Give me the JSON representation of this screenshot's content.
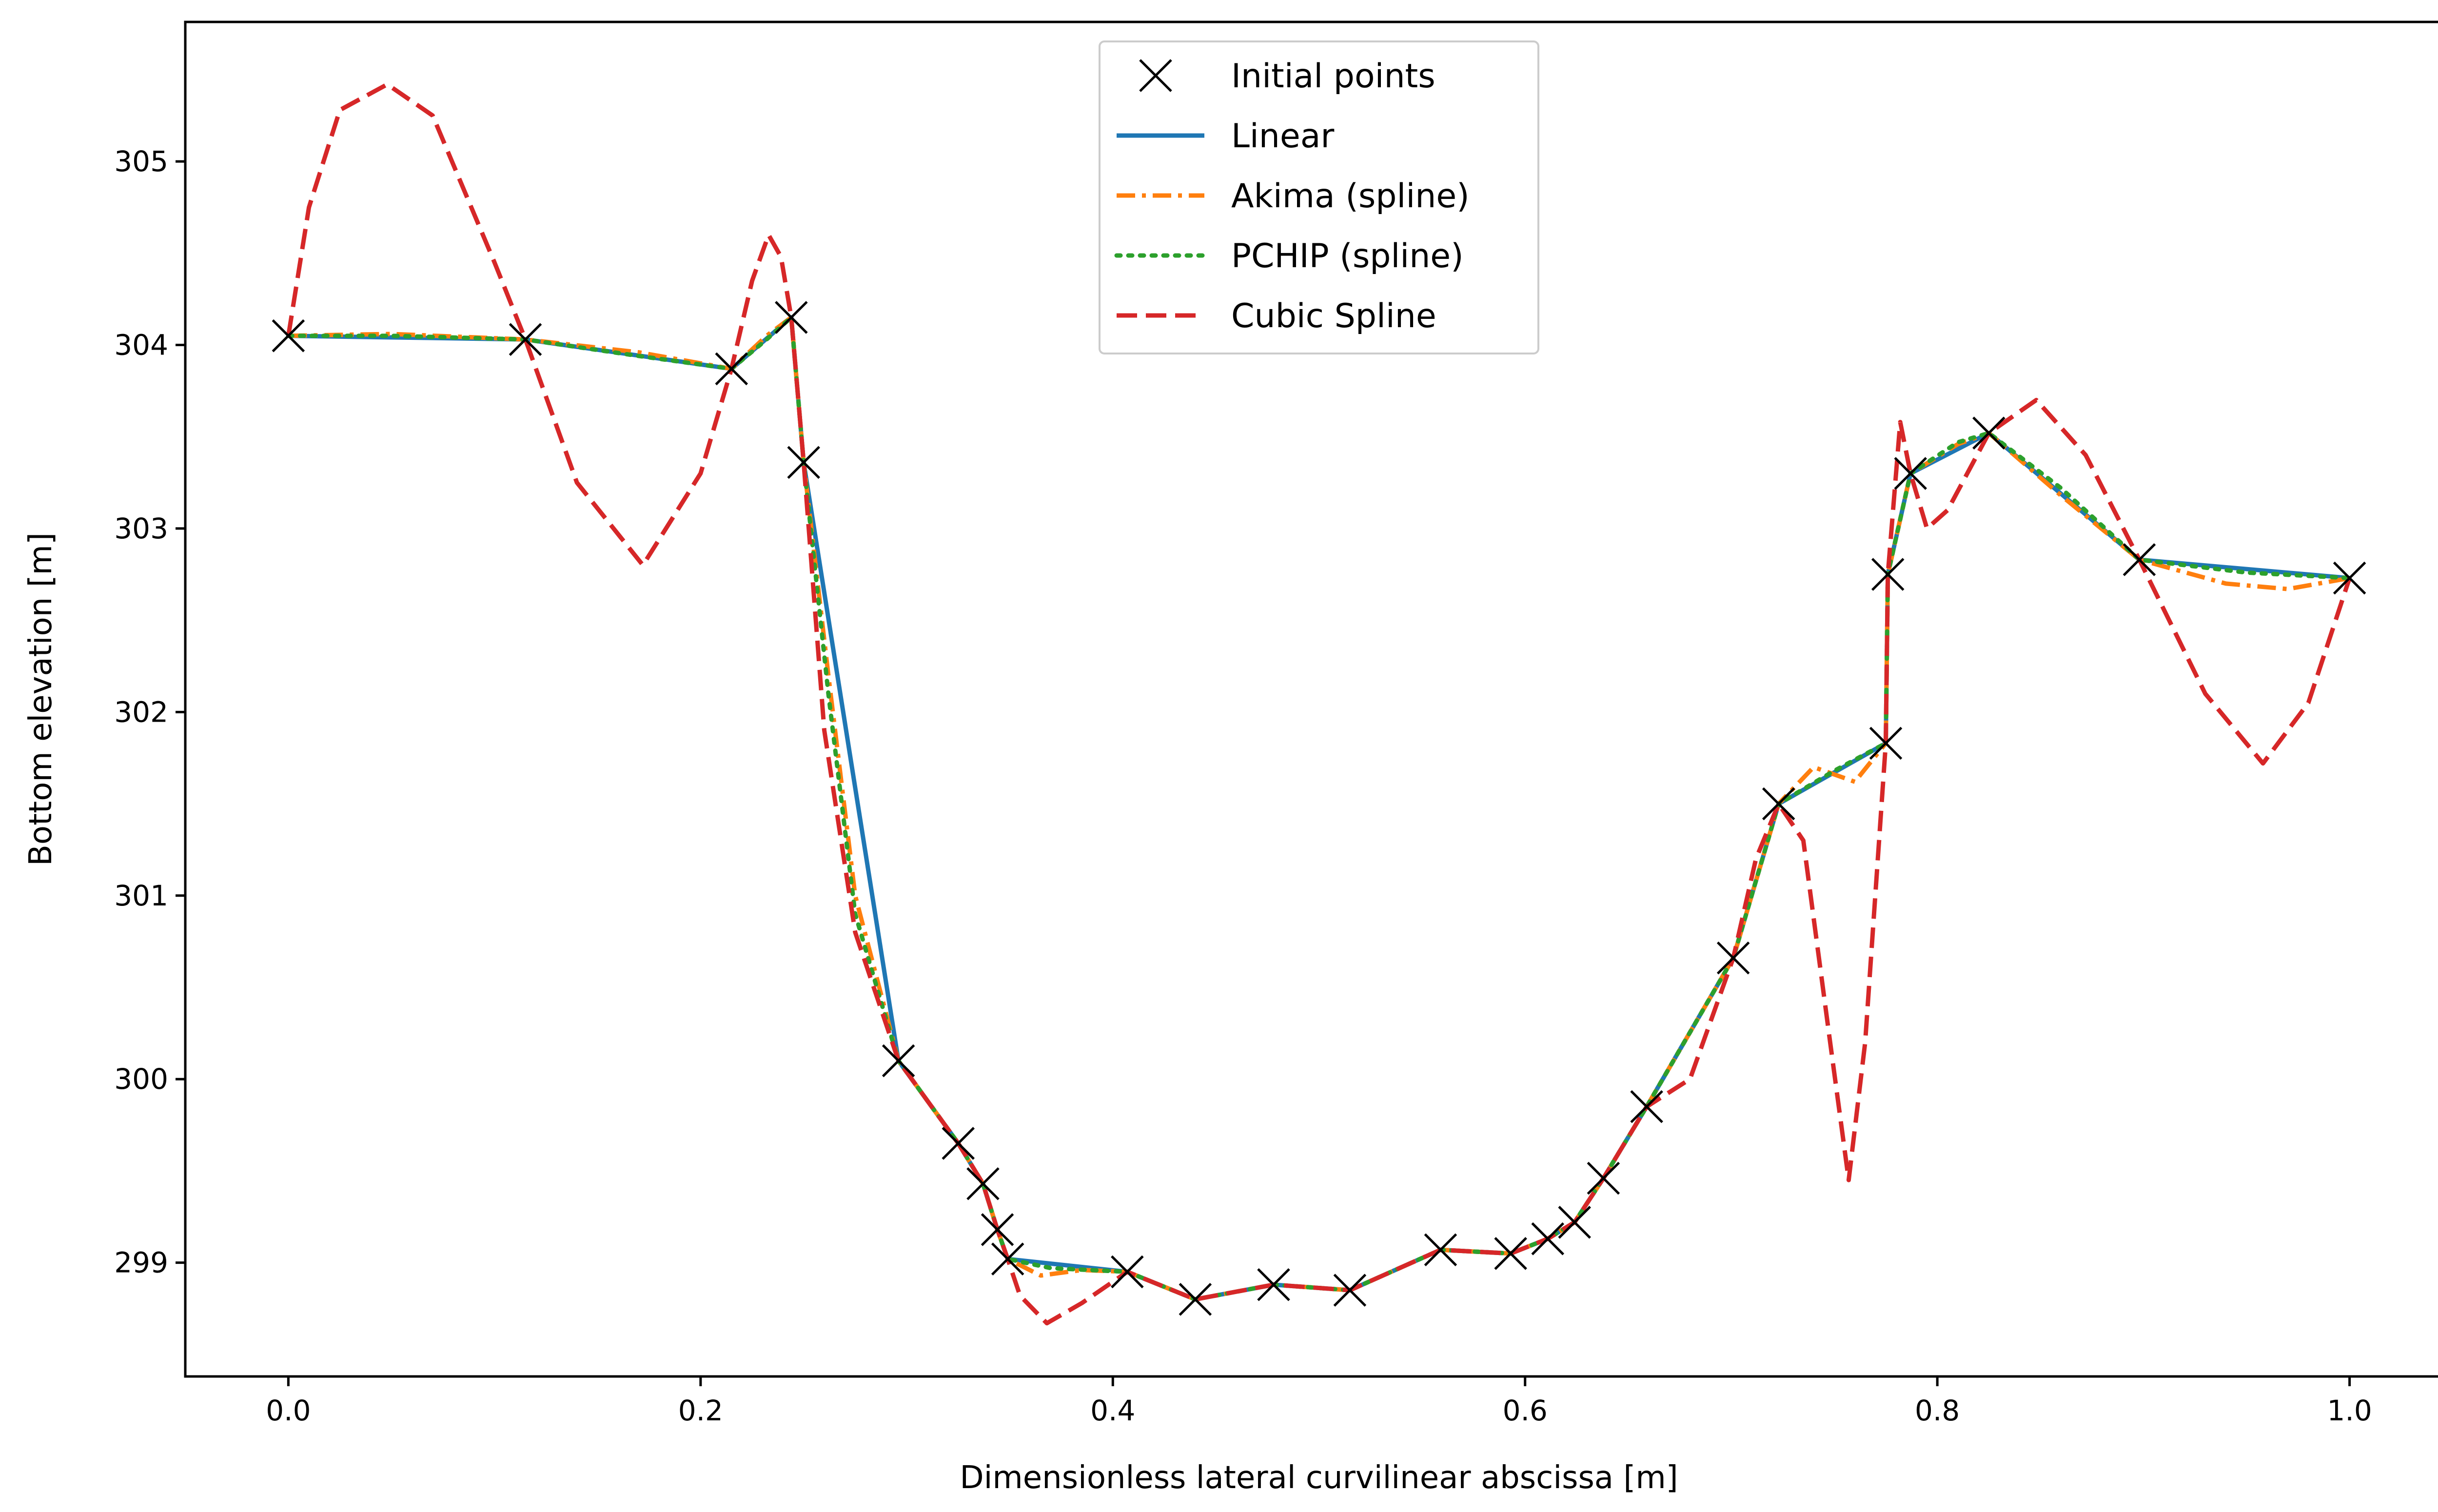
{
  "chart_data": {
    "type": "line",
    "title": "",
    "xlabel": "Dimensionless lateral curvilinear abscissa [m]",
    "ylabel": "Bottom elevation [m]",
    "xlim": [
      -0.05,
      1.05
    ],
    "ylim": [
      298.38,
      305.76
    ],
    "grid": false,
    "legend_position": "top-center",
    "xticks": [
      0.0,
      0.2,
      0.4,
      0.6,
      0.8,
      1.0
    ],
    "xtick_labels": [
      "0.0",
      "0.2",
      "0.4",
      "0.6",
      "0.8",
      "1.0"
    ],
    "yticks": [
      299,
      300,
      301,
      302,
      303,
      304,
      305
    ],
    "ytick_labels": [
      "299",
      "300",
      "301",
      "302",
      "303",
      "304",
      "305"
    ],
    "initial_points": {
      "name": "Initial points",
      "color": "#000000",
      "marker": "x",
      "x": [
        0.0,
        0.115,
        0.215,
        0.244,
        0.25,
        0.296,
        0.325,
        0.337,
        0.344,
        0.349,
        0.407,
        0.44,
        0.478,
        0.515,
        0.559,
        0.593,
        0.611,
        0.624,
        0.638,
        0.659,
        0.701,
        0.723,
        0.775,
        0.776,
        0.787,
        0.825,
        0.898,
        1.0
      ],
      "y": [
        304.05,
        304.03,
        303.87,
        304.15,
        303.36,
        300.1,
        299.65,
        299.43,
        299.18,
        299.02,
        298.95,
        298.8,
        298.88,
        298.85,
        299.07,
        299.05,
        299.13,
        299.22,
        299.46,
        299.85,
        300.66,
        301.5,
        301.83,
        302.75,
        303.3,
        303.52,
        302.83,
        302.73
      ]
    },
    "series": [
      {
        "name": "Linear",
        "color": "#1f77b4",
        "dash": "solid",
        "x": [
          0.0,
          0.115,
          0.215,
          0.244,
          0.25,
          0.296,
          0.325,
          0.337,
          0.344,
          0.349,
          0.407,
          0.44,
          0.478,
          0.515,
          0.559,
          0.593,
          0.611,
          0.624,
          0.638,
          0.659,
          0.701,
          0.723,
          0.775,
          0.776,
          0.787,
          0.825,
          0.898,
          1.0
        ],
        "y": [
          304.05,
          304.03,
          303.87,
          304.15,
          303.36,
          300.1,
          299.65,
          299.43,
          299.18,
          299.02,
          298.95,
          298.8,
          298.88,
          298.85,
          299.07,
          299.05,
          299.13,
          299.22,
          299.46,
          299.85,
          300.66,
          301.5,
          301.83,
          302.75,
          303.3,
          303.52,
          302.83,
          302.73
        ]
      },
      {
        "name": "Akima (spline)",
        "color": "#ff7f0e",
        "dash": "dashdot",
        "x": [
          0.0,
          0.05,
          0.115,
          0.17,
          0.215,
          0.232,
          0.244,
          0.25,
          0.262,
          0.275,
          0.296,
          0.325,
          0.337,
          0.344,
          0.349,
          0.365,
          0.385,
          0.407,
          0.44,
          0.478,
          0.515,
          0.559,
          0.593,
          0.611,
          0.624,
          0.638,
          0.659,
          0.701,
          0.723,
          0.74,
          0.76,
          0.775,
          0.776,
          0.787,
          0.81,
          0.825,
          0.86,
          0.898,
          0.94,
          0.97,
          1.0
        ],
        "y": [
          304.05,
          304.06,
          304.03,
          303.96,
          303.87,
          304.05,
          304.15,
          303.36,
          302.2,
          301.0,
          300.1,
          299.65,
          299.43,
          299.18,
          299.02,
          298.93,
          298.96,
          298.95,
          298.8,
          298.88,
          298.85,
          299.07,
          299.05,
          299.13,
          299.22,
          299.46,
          299.85,
          300.66,
          301.5,
          301.7,
          301.62,
          301.83,
          302.75,
          303.3,
          303.46,
          303.52,
          303.18,
          302.83,
          302.7,
          302.67,
          302.73
        ]
      },
      {
        "name": "PCHIP (spline)",
        "color": "#2ca02c",
        "dash": "dotted",
        "x": [
          0.0,
          0.05,
          0.115,
          0.17,
          0.215,
          0.232,
          0.244,
          0.25,
          0.262,
          0.275,
          0.296,
          0.325,
          0.337,
          0.344,
          0.349,
          0.37,
          0.407,
          0.44,
          0.478,
          0.515,
          0.559,
          0.593,
          0.611,
          0.624,
          0.638,
          0.659,
          0.701,
          0.723,
          0.75,
          0.775,
          0.776,
          0.787,
          0.81,
          0.825,
          0.86,
          0.898,
          0.95,
          1.0
        ],
        "y": [
          304.05,
          304.05,
          304.03,
          303.94,
          303.87,
          304.03,
          304.15,
          303.36,
          302.1,
          300.9,
          300.1,
          299.65,
          299.43,
          299.18,
          299.02,
          298.97,
          298.95,
          298.8,
          298.88,
          298.85,
          299.07,
          299.05,
          299.13,
          299.22,
          299.46,
          299.85,
          300.66,
          301.5,
          301.68,
          301.83,
          302.75,
          303.3,
          303.47,
          303.52,
          303.22,
          302.83,
          302.76,
          302.73
        ]
      },
      {
        "name": "Cubic Spline",
        "color": "#d62728",
        "dash": "dashed",
        "x": [
          0.0,
          0.01,
          0.025,
          0.048,
          0.07,
          0.1,
          0.115,
          0.14,
          0.172,
          0.2,
          0.215,
          0.225,
          0.233,
          0.239,
          0.244,
          0.25,
          0.26,
          0.275,
          0.296,
          0.325,
          0.337,
          0.344,
          0.349,
          0.355,
          0.368,
          0.385,
          0.407,
          0.44,
          0.478,
          0.515,
          0.559,
          0.593,
          0.611,
          0.624,
          0.638,
          0.659,
          0.68,
          0.701,
          0.712,
          0.723,
          0.735,
          0.748,
          0.757,
          0.765,
          0.775,
          0.776,
          0.782,
          0.787,
          0.795,
          0.805,
          0.825,
          0.848,
          0.872,
          0.898,
          0.93,
          0.958,
          0.98,
          1.0
        ],
        "y": [
          304.05,
          304.75,
          305.28,
          305.42,
          305.25,
          304.45,
          304.03,
          303.25,
          302.8,
          303.3,
          303.87,
          304.35,
          304.6,
          304.48,
          304.15,
          303.36,
          301.9,
          300.8,
          300.1,
          299.65,
          299.43,
          299.18,
          299.02,
          298.82,
          298.67,
          298.78,
          298.95,
          298.8,
          298.88,
          298.85,
          299.07,
          299.05,
          299.13,
          299.22,
          299.46,
          299.85,
          300.0,
          300.66,
          301.2,
          301.5,
          301.3,
          300.2,
          299.45,
          300.2,
          301.83,
          302.75,
          303.58,
          303.3,
          303.0,
          303.1,
          303.52,
          303.7,
          303.4,
          302.83,
          302.1,
          301.72,
          302.05,
          302.73
        ]
      }
    ]
  }
}
